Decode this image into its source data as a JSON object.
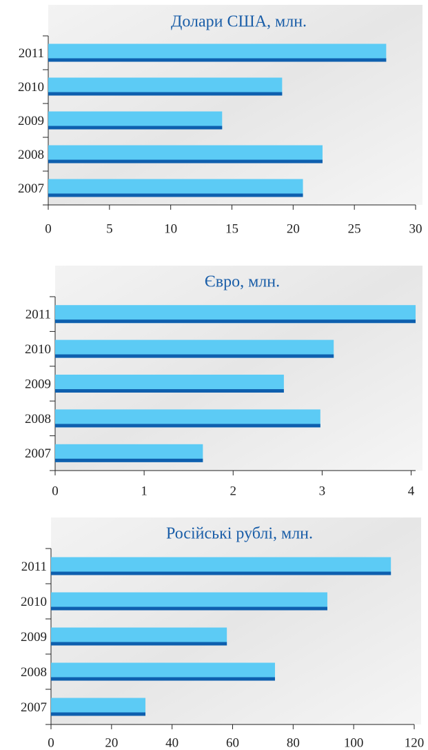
{
  "chart_data": [
    {
      "type": "bar",
      "orientation": "horizontal",
      "title": "Долари США, млн.",
      "categories": [
        "2011",
        "2010",
        "2009",
        "2008",
        "2007"
      ],
      "values": [
        27.6,
        19.1,
        14.2,
        22.4,
        20.8
      ],
      "color": "#5ccbf5",
      "edge_color": "#0e5fae",
      "xlim": [
        0,
        30
      ],
      "xticks": [
        0,
        5,
        10,
        15,
        20,
        25,
        30
      ]
    },
    {
      "type": "bar",
      "orientation": "horizontal",
      "title": "Євро, млн.",
      "categories": [
        "2011",
        "2010",
        "2009",
        "2008",
        "2007"
      ],
      "values": [
        4.05,
        3.13,
        2.57,
        2.98,
        1.66
      ],
      "color": "#5ccbf5",
      "edge_color": "#0e5fae",
      "xlim": [
        0,
        4.05
      ],
      "xticks": [
        0,
        1,
        2,
        3,
        4
      ]
    },
    {
      "type": "bar",
      "orientation": "horizontal",
      "title": "Російські рублі, млн.",
      "categories": [
        "2011",
        "2010",
        "2009",
        "2008",
        "2007"
      ],
      "values": [
        112.3,
        91.3,
        58.1,
        74,
        31.2
      ],
      "color": "#5ccbf5",
      "edge_color": "#0e5fae",
      "xlim": [
        0,
        120
      ],
      "xticks": [
        0,
        20,
        40,
        60,
        80,
        100,
        120
      ]
    }
  ]
}
